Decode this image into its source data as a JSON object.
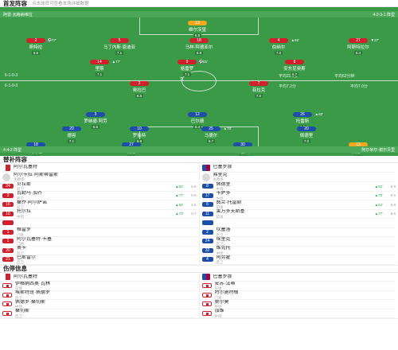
{
  "lineup_section": {
    "title": "首发阵容",
    "subtitle": "点击球员可查看本场详细数据"
  },
  "field": {
    "home_bar": {
      "left": "阿雷·瓦格纳维拉",
      "right": "4-2-3-1 阵型"
    },
    "away_bar": {
      "left": "4-4-2 阵型",
      "right": "阿尔米尔·谢尔贝里"
    },
    "center_left": "6-1-0-3",
    "center_right": "平均62分钟",
    "center_far": "平均7.0分",
    "center_mid_1": "平均22.9岁",
    "center_mid_2": "平均7.2分",
    "center_circle": "3"
  },
  "home_players": [
    {
      "num": "13",
      "name": "维尔茨堡",
      "rating": "6.8",
      "ev": ""
    },
    {
      "num": "2",
      "name": "斯特拉",
      "rating": "6.6",
      "ev": "⚽77'"
    },
    {
      "num": "5",
      "name": "马丁内斯·恩迪亚",
      "rating": "7.1",
      "ev": ""
    },
    {
      "num": "18",
      "name": "马林·阿德亚尔",
      "rating": "6.8",
      "ev": ""
    },
    {
      "num": "4",
      "name": "伯纳尔",
      "rating": "7.0",
      "ev": "▲62'"
    },
    {
      "num": "27",
      "name": "阿斯特拉尔",
      "rating": "6.4",
      "ev": "▼27'"
    },
    {
      "num": "14",
      "name": "里斯",
      "rating": "7.1",
      "ev": "▲77'"
    },
    {
      "num": "9",
      "name": "格雷罗",
      "rating": "7.1",
      "ev": "⚽61'"
    },
    {
      "num": "8",
      "name": "安东尼奥斯",
      "rating": "6.7",
      "ev": ""
    },
    {
      "num": "3",
      "name": "奥拉巴",
      "rating": "6.9",
      "ev": ""
    },
    {
      "num": "7",
      "name": "菲拉克",
      "rating": "7.0",
      "ev": ""
    }
  ],
  "away_players": [
    {
      "num": "3",
      "name": "罗纳德·阿劳",
      "rating": "6.5",
      "ev": ""
    },
    {
      "num": "12",
      "name": "巴尔德",
      "rating": "6.4",
      "ev": ""
    },
    {
      "num": "26",
      "name": "托雷斯",
      "rating": "6.6",
      "ev": "▲62'"
    },
    {
      "num": "20",
      "name": "德容",
      "rating": "7.1",
      "ev": ""
    },
    {
      "num": "10",
      "name": "罗伯特",
      "rating": "6.8",
      "ev": ""
    },
    {
      "num": "25",
      "name": "马德尔",
      "rating": "6.7",
      "ev": "▲70'"
    },
    {
      "num": "20",
      "name": "佩德里",
      "rating": "7.0",
      "ev": ""
    },
    {
      "num": "18",
      "name": "阿劳霍",
      "rating": "6.6",
      "ev": ""
    },
    {
      "num": "27",
      "name": "孔德",
      "rating": "7.1",
      "ev": ""
    },
    {
      "num": "30",
      "name": "库巴西",
      "rating": "6.9",
      "ev": ""
    },
    {
      "num": "13",
      "name": "佩尼亚",
      "rating": "7.2",
      "ev": ""
    }
  ],
  "subs_section": {
    "title": "替补阵容"
  },
  "home_subs": {
    "team": "阿尔瓦塞特",
    "manager": "阿尔卡拉·阿斯蒂雷斯",
    "manager_role": "主教练",
    "items": [
      {
        "num": "24",
        "name": "贝拉斯",
        "pos": "前卫",
        "sub": "▲62'",
        "sr": "6.8"
      },
      {
        "num": "3",
        "name": "瓦勒马·加齐",
        "pos": "后卫",
        "sub": "▲77'",
        "sr": "6.6"
      },
      {
        "num": "16",
        "name": "桑乔·阿尔萨诺",
        "pos": "前卫",
        "sub": "▲82'",
        "sr": "6.5"
      },
      {
        "num": "10",
        "name": "托尔拉",
        "pos": "中场",
        "sub": "▲70'",
        "sr": "6.7"
      },
      {
        "num": "",
        "name": "",
        "pos": "",
        "sub": "",
        "sr": ""
      },
      {
        "num": "1",
        "name": "格雷罗",
        "pos": "门将",
        "sub": "",
        "sr": ""
      },
      {
        "num": "1",
        "name": "阿尔瓦塞特·卡塞",
        "pos": "门将",
        "sub": "",
        "sr": ""
      },
      {
        "num": "20",
        "name": "奥卡",
        "pos": "后卫",
        "sub": "",
        "sr": ""
      },
      {
        "num": "21",
        "name": "巴斯雷尔",
        "pos": "后卫",
        "sub": "",
        "sr": ""
      }
    ]
  },
  "away_subs": {
    "team": "巴塞罗那",
    "manager": "弗里克",
    "manager_role": "主教练",
    "items": [
      {
        "num": "8",
        "name": "佩德里",
        "pos": "中场",
        "sub": "▲62'",
        "sr": "6.9"
      },
      {
        "num": "17",
        "name": "卡萨多",
        "pos": "中场",
        "sub": "▲70'",
        "sr": "6.6"
      },
      {
        "num": "6",
        "name": "费兰·托雷斯",
        "pos": "前锋",
        "sub": "▲64'",
        "sr": "6.8"
      },
      {
        "num": "11",
        "name": "莱万多夫斯基",
        "pos": "前锋",
        "sub": "▲77'",
        "sr": "6.5"
      },
      {
        "num": "",
        "name": "",
        "pos": "",
        "sub": "",
        "sr": ""
      },
      {
        "num": "2",
        "name": "坎塞洛",
        "pos": "后卫",
        "sub": "",
        "sr": ""
      },
      {
        "num": "24",
        "name": "埃里克",
        "pos": "后卫",
        "sub": "",
        "sr": ""
      },
      {
        "num": "32",
        "name": "维克托",
        "pos": "中场",
        "sub": "",
        "sr": ""
      },
      {
        "num": "4",
        "name": "阿劳霍",
        "pos": "后卫",
        "sub": "",
        "sr": ""
      }
    ]
  },
  "injury_section": {
    "title": "伤停信息"
  },
  "home_injuries": {
    "team": "阿尔瓦塞特",
    "items": [
      {
        "name": "伊格纳西奥·瓦林",
        "pos": "前锋"
      },
      {
        "name": "埃斯特班·佩德罗",
        "pos": "后卫"
      },
      {
        "name": "佩德罗·桑切斯",
        "pos": "中场"
      },
      {
        "name": "桑切斯",
        "pos": "后卫"
      }
    ]
  },
  "away_injuries": {
    "team": "巴塞罗那",
    "items": [
      {
        "name": "安苏·法蒂",
        "pos": "前锋"
      },
      {
        "name": "特尔施特根",
        "pos": "门将"
      },
      {
        "name": "奥尔莫",
        "pos": "中场"
      },
      {
        "name": "加维",
        "pos": "中场"
      }
    ]
  }
}
